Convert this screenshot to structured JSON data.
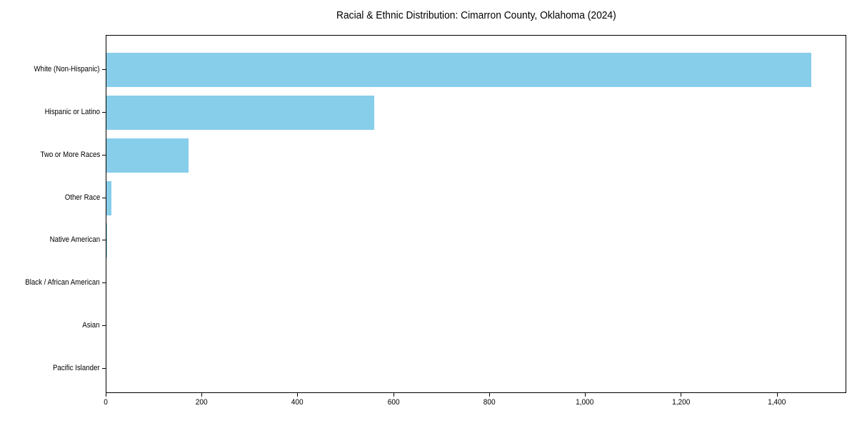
{
  "chart_data": {
    "type": "bar",
    "orientation": "horizontal",
    "title": "Racial & Ethnic Distribution: Cimarron County, Oklahoma (2024)",
    "categories": [
      "White (Non-Hispanic)",
      "Hispanic or Latino",
      "Two or More Races",
      "Other Race",
      "Native American",
      "Black / African American",
      "Asian",
      "Pacific Islander"
    ],
    "values": [
      1473,
      560,
      172,
      10,
      2,
      0,
      0,
      0
    ],
    "xlabel": "",
    "ylabel": "",
    "xlim": [
      0,
      1545
    ],
    "x_ticks": [
      0,
      200,
      400,
      600,
      800,
      1000,
      1200,
      1400
    ],
    "x_tick_labels": [
      "0",
      "200",
      "400",
      "600",
      "800",
      "1,000",
      "1,200",
      "1,400"
    ],
    "grid": false,
    "legend": null,
    "bar_color": "#87CEEB",
    "spine_color": "#000000",
    "background_color": "#FFFFFF",
    "text_color": "#000000"
  }
}
